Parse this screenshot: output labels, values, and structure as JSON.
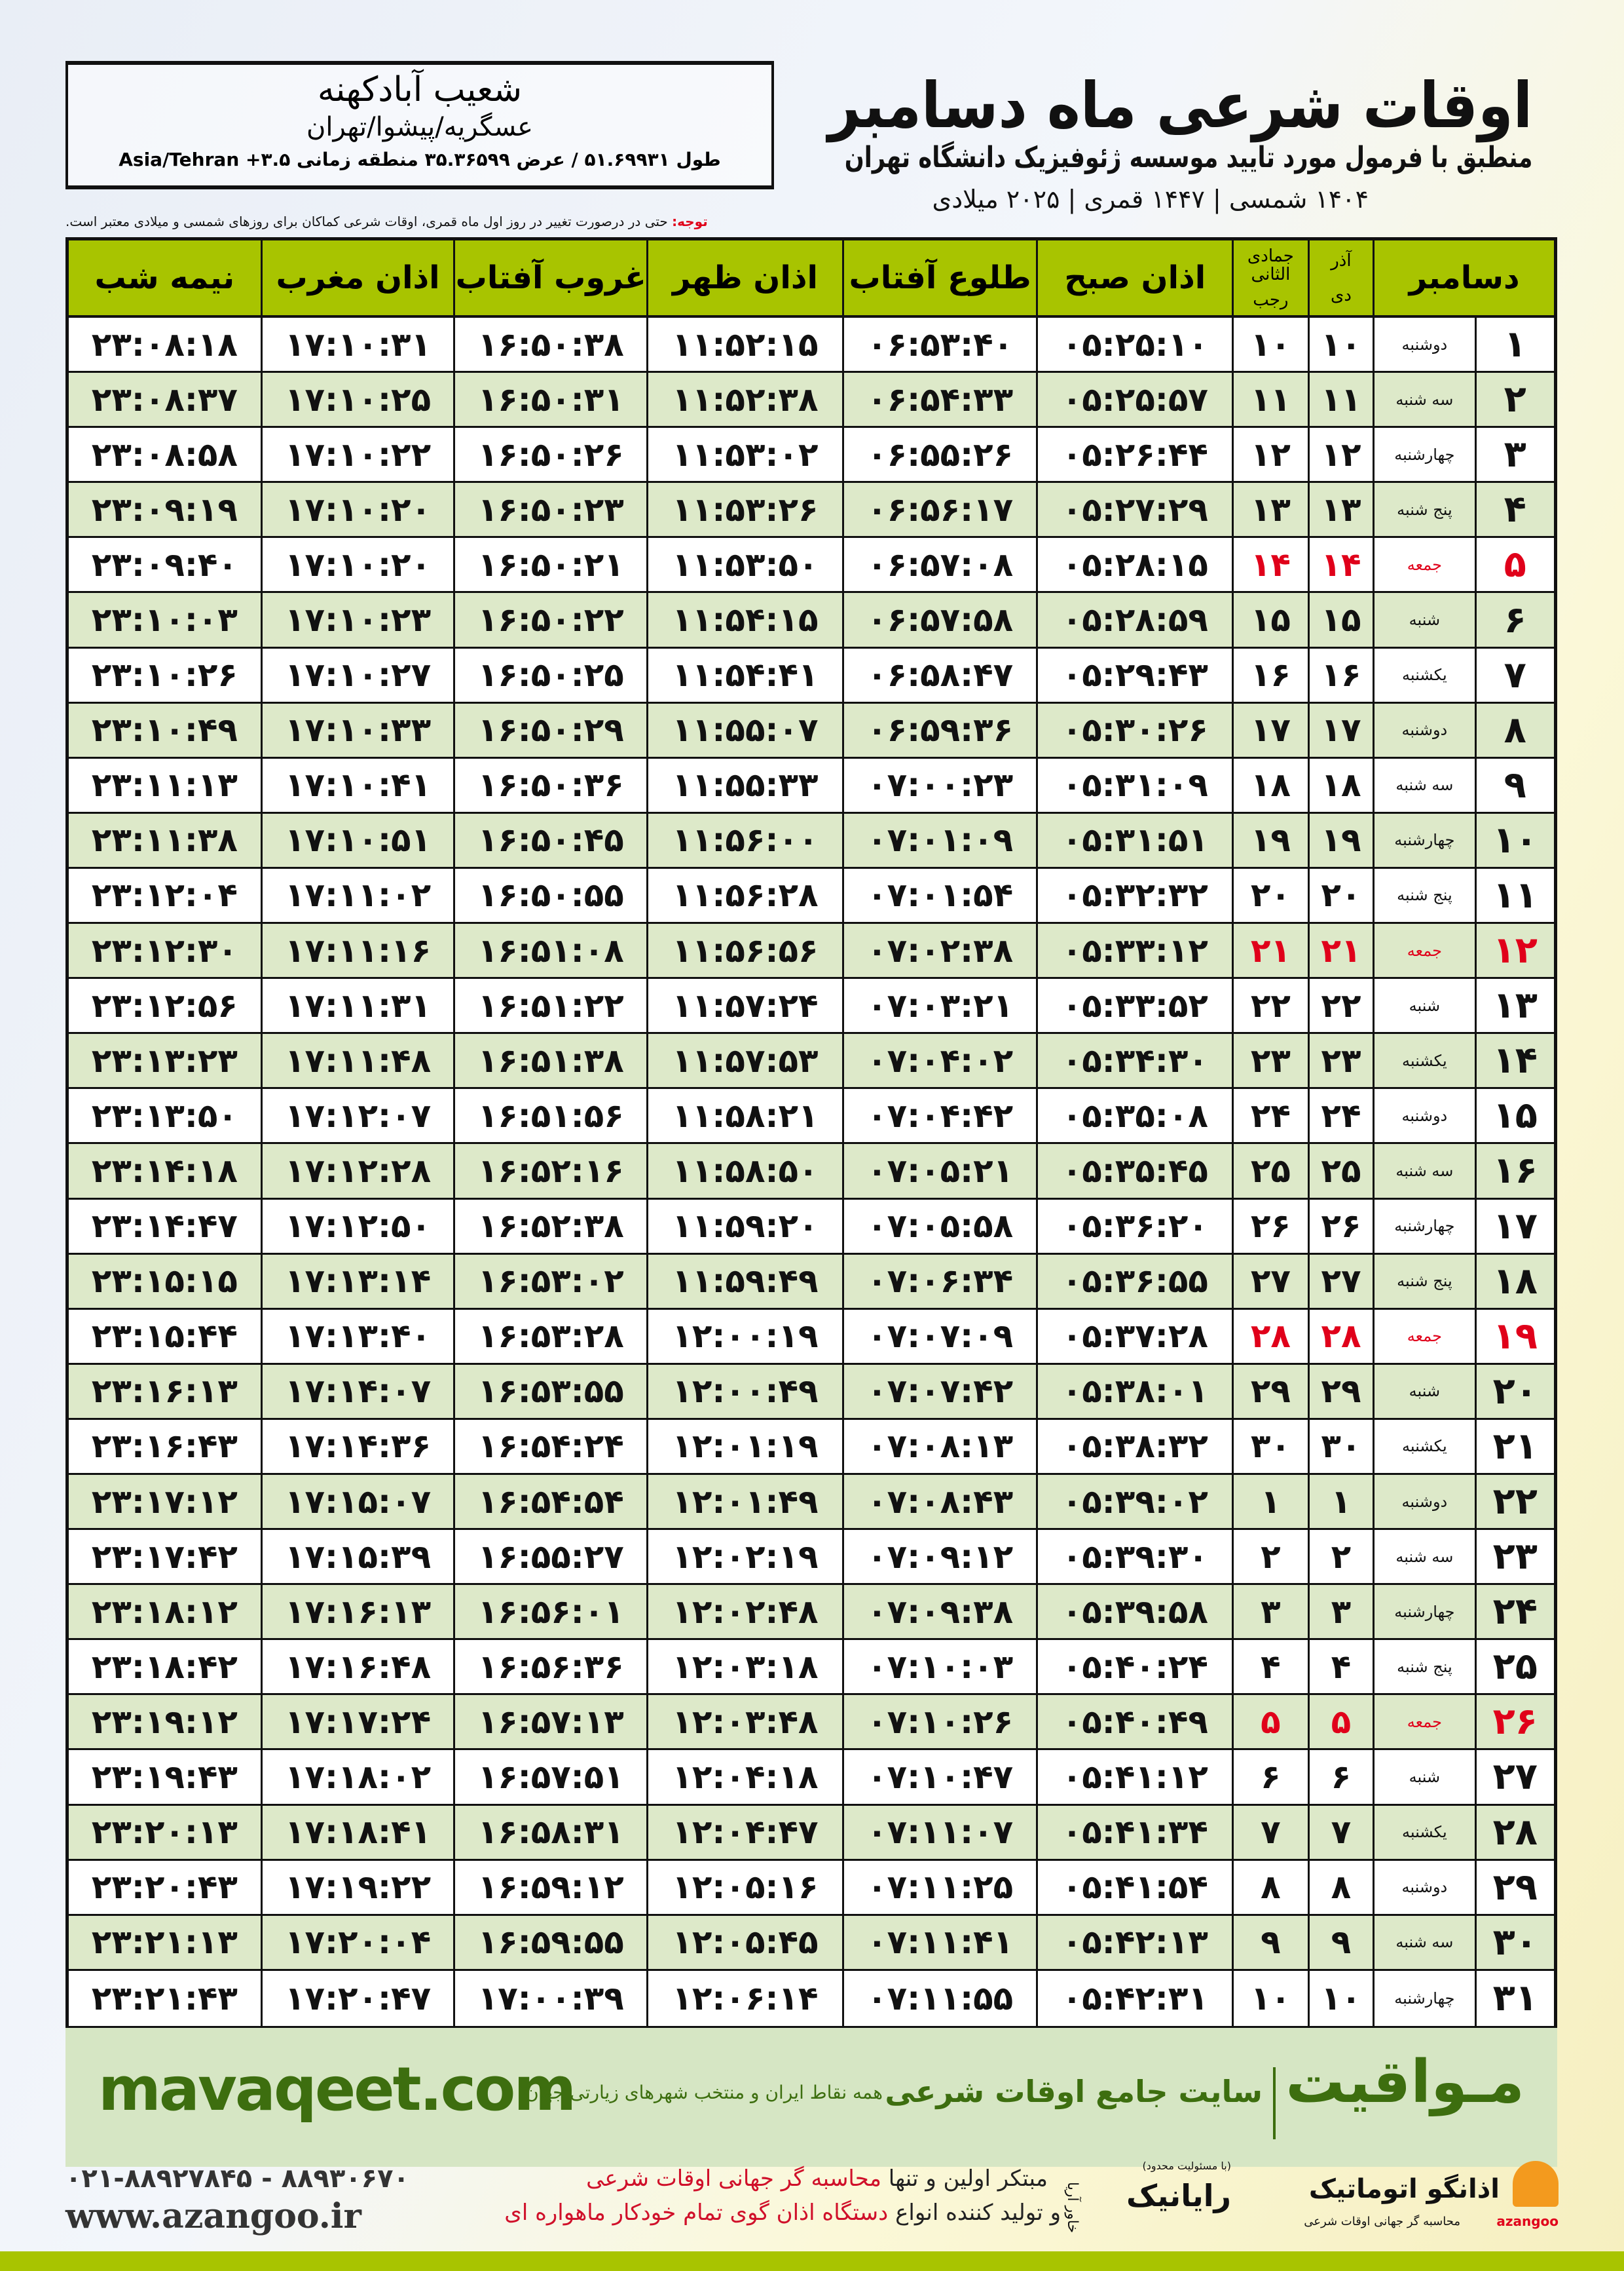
{
  "header": {
    "title": "اوقات شرعی ماه دسامبر",
    "subtitle": "منطبق با فرمول مورد تایید موسسه ژئوفیزیک دانشگاه تهران",
    "dates": "۱۴۰۴ شمسی | ۱۴۴۷ قمری | ۲۰۲۵ میلادی"
  },
  "location": {
    "name": "شعیب آبادکهنه",
    "region": "عسگریه/پیشوا/تهران",
    "coords": "طول ۵۱.۶۹۹۳۱ / عرض ۳۵.۳۶۵۹۹ منطقه زمانی ۳.۵+ Asia/Tehran"
  },
  "note": {
    "label": "توجه:",
    "text": " حتی در درصورت تغییر در روز اول ماه قمری، اوقات شرعی کماکان برای روزهای شمسی و میلادی معتبر است."
  },
  "columns": {
    "month": "دسامبر",
    "shamsi_top": "آذر",
    "shamsi_bottom": "دی",
    "qamari_top": "جمادی الثانی",
    "qamari_bottom": "رجب",
    "fajr": "اذان صبح",
    "sunrise": "طلوع آفتاب",
    "dhuhr": "اذان ظهر",
    "sunset": "غروب آفتاب",
    "maghrib": "اذان مغرب",
    "midnight": "نیمه شب"
  },
  "colors": {
    "header_green": "#a8c400",
    "row_alt": "#dde9c9",
    "friday_red": "#e0001a",
    "brand_green": "#3d6e0f"
  },
  "rows": [
    {
      "day": "۱",
      "weekday": "دوشنبه",
      "shamsi": "۱۰",
      "qamari": "۱۰",
      "fajr": "۰۵:۲۵:۱۰",
      "sunrise": "۰۶:۵۳:۴۰",
      "dhuhr": "۱۱:۵۲:۱۵",
      "sunset": "۱۶:۵۰:۳۸",
      "maghrib": "۱۷:۱۰:۳۱",
      "midnight": "۲۳:۰۸:۱۸",
      "friday": false
    },
    {
      "day": "۲",
      "weekday": "سه شنبه",
      "shamsi": "۱۱",
      "qamari": "۱۱",
      "fajr": "۰۵:۲۵:۵۷",
      "sunrise": "۰۶:۵۴:۳۳",
      "dhuhr": "۱۱:۵۲:۳۸",
      "sunset": "۱۶:۵۰:۳۱",
      "maghrib": "۱۷:۱۰:۲۵",
      "midnight": "۲۳:۰۸:۳۷",
      "friday": false
    },
    {
      "day": "۳",
      "weekday": "چهارشنبه",
      "shamsi": "۱۲",
      "qamari": "۱۲",
      "fajr": "۰۵:۲۶:۴۴",
      "sunrise": "۰۶:۵۵:۲۶",
      "dhuhr": "۱۱:۵۳:۰۲",
      "sunset": "۱۶:۵۰:۲۶",
      "maghrib": "۱۷:۱۰:۲۲",
      "midnight": "۲۳:۰۸:۵۸",
      "friday": false
    },
    {
      "day": "۴",
      "weekday": "پنج شنبه",
      "shamsi": "۱۳",
      "qamari": "۱۳",
      "fajr": "۰۵:۲۷:۲۹",
      "sunrise": "۰۶:۵۶:۱۷",
      "dhuhr": "۱۱:۵۳:۲۶",
      "sunset": "۱۶:۵۰:۲۳",
      "maghrib": "۱۷:۱۰:۲۰",
      "midnight": "۲۳:۰۹:۱۹",
      "friday": false
    },
    {
      "day": "۵",
      "weekday": "جمعه",
      "shamsi": "۱۴",
      "qamari": "۱۴",
      "fajr": "۰۵:۲۸:۱۵",
      "sunrise": "۰۶:۵۷:۰۸",
      "dhuhr": "۱۱:۵۳:۵۰",
      "sunset": "۱۶:۵۰:۲۱",
      "maghrib": "۱۷:۱۰:۲۰",
      "midnight": "۲۳:۰۹:۴۰",
      "friday": true
    },
    {
      "day": "۶",
      "weekday": "شنبه",
      "shamsi": "۱۵",
      "qamari": "۱۵",
      "fajr": "۰۵:۲۸:۵۹",
      "sunrise": "۰۶:۵۷:۵۸",
      "dhuhr": "۱۱:۵۴:۱۵",
      "sunset": "۱۶:۵۰:۲۲",
      "maghrib": "۱۷:۱۰:۲۳",
      "midnight": "۲۳:۱۰:۰۳",
      "friday": false
    },
    {
      "day": "۷",
      "weekday": "یکشنبه",
      "shamsi": "۱۶",
      "qamari": "۱۶",
      "fajr": "۰۵:۲۹:۴۳",
      "sunrise": "۰۶:۵۸:۴۷",
      "dhuhr": "۱۱:۵۴:۴۱",
      "sunset": "۱۶:۵۰:۲۵",
      "maghrib": "۱۷:۱۰:۲۷",
      "midnight": "۲۳:۱۰:۲۶",
      "friday": false
    },
    {
      "day": "۸",
      "weekday": "دوشنبه",
      "shamsi": "۱۷",
      "qamari": "۱۷",
      "fajr": "۰۵:۳۰:۲۶",
      "sunrise": "۰۶:۵۹:۳۶",
      "dhuhr": "۱۱:۵۵:۰۷",
      "sunset": "۱۶:۵۰:۲۹",
      "maghrib": "۱۷:۱۰:۳۳",
      "midnight": "۲۳:۱۰:۴۹",
      "friday": false
    },
    {
      "day": "۹",
      "weekday": "سه شنبه",
      "shamsi": "۱۸",
      "qamari": "۱۸",
      "fajr": "۰۵:۳۱:۰۹",
      "sunrise": "۰۷:۰۰:۲۳",
      "dhuhr": "۱۱:۵۵:۳۳",
      "sunset": "۱۶:۵۰:۳۶",
      "maghrib": "۱۷:۱۰:۴۱",
      "midnight": "۲۳:۱۱:۱۳",
      "friday": false
    },
    {
      "day": "۱۰",
      "weekday": "چهارشنبه",
      "shamsi": "۱۹",
      "qamari": "۱۹",
      "fajr": "۰۵:۳۱:۵۱",
      "sunrise": "۰۷:۰۱:۰۹",
      "dhuhr": "۱۱:۵۶:۰۰",
      "sunset": "۱۶:۵۰:۴۵",
      "maghrib": "۱۷:۱۰:۵۱",
      "midnight": "۲۳:۱۱:۳۸",
      "friday": false
    },
    {
      "day": "۱۱",
      "weekday": "پنج شنبه",
      "shamsi": "۲۰",
      "qamari": "۲۰",
      "fajr": "۰۵:۳۲:۳۲",
      "sunrise": "۰۷:۰۱:۵۴",
      "dhuhr": "۱۱:۵۶:۲۸",
      "sunset": "۱۶:۵۰:۵۵",
      "maghrib": "۱۷:۱۱:۰۲",
      "midnight": "۲۳:۱۲:۰۴",
      "friday": false
    },
    {
      "day": "۱۲",
      "weekday": "جمعه",
      "shamsi": "۲۱",
      "qamari": "۲۱",
      "fajr": "۰۵:۳۳:۱۲",
      "sunrise": "۰۷:۰۲:۳۸",
      "dhuhr": "۱۱:۵۶:۵۶",
      "sunset": "۱۶:۵۱:۰۸",
      "maghrib": "۱۷:۱۱:۱۶",
      "midnight": "۲۳:۱۲:۳۰",
      "friday": true
    },
    {
      "day": "۱۳",
      "weekday": "شنبه",
      "shamsi": "۲۲",
      "qamari": "۲۲",
      "fajr": "۰۵:۳۳:۵۲",
      "sunrise": "۰۷:۰۳:۲۱",
      "dhuhr": "۱۱:۵۷:۲۴",
      "sunset": "۱۶:۵۱:۲۲",
      "maghrib": "۱۷:۱۱:۳۱",
      "midnight": "۲۳:۱۲:۵۶",
      "friday": false
    },
    {
      "day": "۱۴",
      "weekday": "یکشنبه",
      "shamsi": "۲۳",
      "qamari": "۲۳",
      "fajr": "۰۵:۳۴:۳۰",
      "sunrise": "۰۷:۰۴:۰۲",
      "dhuhr": "۱۱:۵۷:۵۳",
      "sunset": "۱۶:۵۱:۳۸",
      "maghrib": "۱۷:۱۱:۴۸",
      "midnight": "۲۳:۱۳:۲۳",
      "friday": false
    },
    {
      "day": "۱۵",
      "weekday": "دوشنبه",
      "shamsi": "۲۴",
      "qamari": "۲۴",
      "fajr": "۰۵:۳۵:۰۸",
      "sunrise": "۰۷:۰۴:۴۲",
      "dhuhr": "۱۱:۵۸:۲۱",
      "sunset": "۱۶:۵۱:۵۶",
      "maghrib": "۱۷:۱۲:۰۷",
      "midnight": "۲۳:۱۳:۵۰",
      "friday": false
    },
    {
      "day": "۱۶",
      "weekday": "سه شنبه",
      "shamsi": "۲۵",
      "qamari": "۲۵",
      "fajr": "۰۵:۳۵:۴۵",
      "sunrise": "۰۷:۰۵:۲۱",
      "dhuhr": "۱۱:۵۸:۵۰",
      "sunset": "۱۶:۵۲:۱۶",
      "maghrib": "۱۷:۱۲:۲۸",
      "midnight": "۲۳:۱۴:۱۸",
      "friday": false
    },
    {
      "day": "۱۷",
      "weekday": "چهارشنبه",
      "shamsi": "۲۶",
      "qamari": "۲۶",
      "fajr": "۰۵:۳۶:۲۰",
      "sunrise": "۰۷:۰۵:۵۸",
      "dhuhr": "۱۱:۵۹:۲۰",
      "sunset": "۱۶:۵۲:۳۸",
      "maghrib": "۱۷:۱۲:۵۰",
      "midnight": "۲۳:۱۴:۴۷",
      "friday": false
    },
    {
      "day": "۱۸",
      "weekday": "پنج شنبه",
      "shamsi": "۲۷",
      "qamari": "۲۷",
      "fajr": "۰۵:۳۶:۵۵",
      "sunrise": "۰۷:۰۶:۳۴",
      "dhuhr": "۱۱:۵۹:۴۹",
      "sunset": "۱۶:۵۳:۰۲",
      "maghrib": "۱۷:۱۳:۱۴",
      "midnight": "۲۳:۱۵:۱۵",
      "friday": false
    },
    {
      "day": "۱۹",
      "weekday": "جمعه",
      "shamsi": "۲۸",
      "qamari": "۲۸",
      "fajr": "۰۵:۳۷:۲۸",
      "sunrise": "۰۷:۰۷:۰۹",
      "dhuhr": "۱۲:۰۰:۱۹",
      "sunset": "۱۶:۵۳:۲۸",
      "maghrib": "۱۷:۱۳:۴۰",
      "midnight": "۲۳:۱۵:۴۴",
      "friday": true
    },
    {
      "day": "۲۰",
      "weekday": "شنبه",
      "shamsi": "۲۹",
      "qamari": "۲۹",
      "fajr": "۰۵:۳۸:۰۱",
      "sunrise": "۰۷:۰۷:۴۲",
      "dhuhr": "۱۲:۰۰:۴۹",
      "sunset": "۱۶:۵۳:۵۵",
      "maghrib": "۱۷:۱۴:۰۷",
      "midnight": "۲۳:۱۶:۱۳",
      "friday": false
    },
    {
      "day": "۲۱",
      "weekday": "یکشنبه",
      "shamsi": "۳۰",
      "qamari": "۳۰",
      "fajr": "۰۵:۳۸:۳۲",
      "sunrise": "۰۷:۰۸:۱۳",
      "dhuhr": "۱۲:۰۱:۱۹",
      "sunset": "۱۶:۵۴:۲۴",
      "maghrib": "۱۷:۱۴:۳۶",
      "midnight": "۲۳:۱۶:۴۳",
      "friday": false
    },
    {
      "day": "۲۲",
      "weekday": "دوشنبه",
      "shamsi": "۱",
      "qamari": "۱",
      "fajr": "۰۵:۳۹:۰۲",
      "sunrise": "۰۷:۰۸:۴۳",
      "dhuhr": "۱۲:۰۱:۴۹",
      "sunset": "۱۶:۵۴:۵۴",
      "maghrib": "۱۷:۱۵:۰۷",
      "midnight": "۲۳:۱۷:۱۲",
      "friday": false
    },
    {
      "day": "۲۳",
      "weekday": "سه شنبه",
      "shamsi": "۲",
      "qamari": "۲",
      "fajr": "۰۵:۳۹:۳۰",
      "sunrise": "۰۷:۰۹:۱۲",
      "dhuhr": "۱۲:۰۲:۱۹",
      "sunset": "۱۶:۵۵:۲۷",
      "maghrib": "۱۷:۱۵:۳۹",
      "midnight": "۲۳:۱۷:۴۲",
      "friday": false
    },
    {
      "day": "۲۴",
      "weekday": "چهارشنبه",
      "shamsi": "۳",
      "qamari": "۳",
      "fajr": "۰۵:۳۹:۵۸",
      "sunrise": "۰۷:۰۹:۳۸",
      "dhuhr": "۱۲:۰۲:۴۸",
      "sunset": "۱۶:۵۶:۰۱",
      "maghrib": "۱۷:۱۶:۱۳",
      "midnight": "۲۳:۱۸:۱۲",
      "friday": false
    },
    {
      "day": "۲۵",
      "weekday": "پنج شنبه",
      "shamsi": "۴",
      "qamari": "۴",
      "fajr": "۰۵:۴۰:۲۴",
      "sunrise": "۰۷:۱۰:۰۳",
      "dhuhr": "۱۲:۰۳:۱۸",
      "sunset": "۱۶:۵۶:۳۶",
      "maghrib": "۱۷:۱۶:۴۸",
      "midnight": "۲۳:۱۸:۴۲",
      "friday": false
    },
    {
      "day": "۲۶",
      "weekday": "جمعه",
      "shamsi": "۵",
      "qamari": "۵",
      "fajr": "۰۵:۴۰:۴۹",
      "sunrise": "۰۷:۱۰:۲۶",
      "dhuhr": "۱۲:۰۳:۴۸",
      "sunset": "۱۶:۵۷:۱۳",
      "maghrib": "۱۷:۱۷:۲۴",
      "midnight": "۲۳:۱۹:۱۲",
      "friday": true
    },
    {
      "day": "۲۷",
      "weekday": "شنبه",
      "shamsi": "۶",
      "qamari": "۶",
      "fajr": "۰۵:۴۱:۱۲",
      "sunrise": "۰۷:۱۰:۴۷",
      "dhuhr": "۱۲:۰۴:۱۸",
      "sunset": "۱۶:۵۷:۵۱",
      "maghrib": "۱۷:۱۸:۰۲",
      "midnight": "۲۳:۱۹:۴۳",
      "friday": false
    },
    {
      "day": "۲۸",
      "weekday": "یکشنبه",
      "shamsi": "۷",
      "qamari": "۷",
      "fajr": "۰۵:۴۱:۳۴",
      "sunrise": "۰۷:۱۱:۰۷",
      "dhuhr": "۱۲:۰۴:۴۷",
      "sunset": "۱۶:۵۸:۳۱",
      "maghrib": "۱۷:۱۸:۴۱",
      "midnight": "۲۳:۲۰:۱۳",
      "friday": false
    },
    {
      "day": "۲۹",
      "weekday": "دوشنبه",
      "shamsi": "۸",
      "qamari": "۸",
      "fajr": "۰۵:۴۱:۵۴",
      "sunrise": "۰۷:۱۱:۲۵",
      "dhuhr": "۱۲:۰۵:۱۶",
      "sunset": "۱۶:۵۹:۱۲",
      "maghrib": "۱۷:۱۹:۲۲",
      "midnight": "۲۳:۲۰:۴۳",
      "friday": false
    },
    {
      "day": "۳۰",
      "weekday": "سه شنبه",
      "shamsi": "۹",
      "qamari": "۹",
      "fajr": "۰۵:۴۲:۱۳",
      "sunrise": "۰۷:۱۱:۴۱",
      "dhuhr": "۱۲:۰۵:۴۵",
      "sunset": "۱۶:۵۹:۵۵",
      "maghrib": "۱۷:۲۰:۰۴",
      "midnight": "۲۳:۲۱:۱۳",
      "friday": false
    },
    {
      "day": "۳۱",
      "weekday": "چهارشنبه",
      "shamsi": "۱۰",
      "qamari": "۱۰",
      "fajr": "۰۵:۴۲:۳۱",
      "sunrise": "۰۷:۱۱:۵۵",
      "dhuhr": "۱۲:۰۶:۱۴",
      "sunset": "۱۷:۰۰:۳۹",
      "maghrib": "۱۷:۲۰:۴۷",
      "midnight": "۲۳:۲۱:۴۳",
      "friday": false
    }
  ],
  "banner": {
    "site": "mavaqeet.com",
    "brand": "مـواقیت",
    "tagline": "سایت جامع اوقات شرعی",
    "subtagline": "همه نقاط ایران و منتخب شهرهای زیارتی جهان"
  },
  "footer": {
    "phone": "۰۲۱-۸۸۹۲۷۸۴۵ - ۸۸۹۳۰۶۷۰",
    "website": "www.azangoo.ir",
    "promo1_a": "مبتکر اولین و تنها ",
    "promo1_b": "محاسبه گر جهانی اوقات شرعی",
    "promo2_a": "و تولید کننده انواع ",
    "promo2_b": "دستگاه اذان گوی تمام خودکار ماهواره ای",
    "logo_azangoo": "اذانگو اتوماتیک",
    "logo_azangoo_sub": "محاسبه گر جهانی اوقات شرعی",
    "logo_azangoo_latin": "azangoo",
    "logo_rayanik": "رایانیک",
    "logo_rayanik_small": "(با مسئولیت محدود)",
    "logo_rayanik_side": "خاور آریا"
  }
}
